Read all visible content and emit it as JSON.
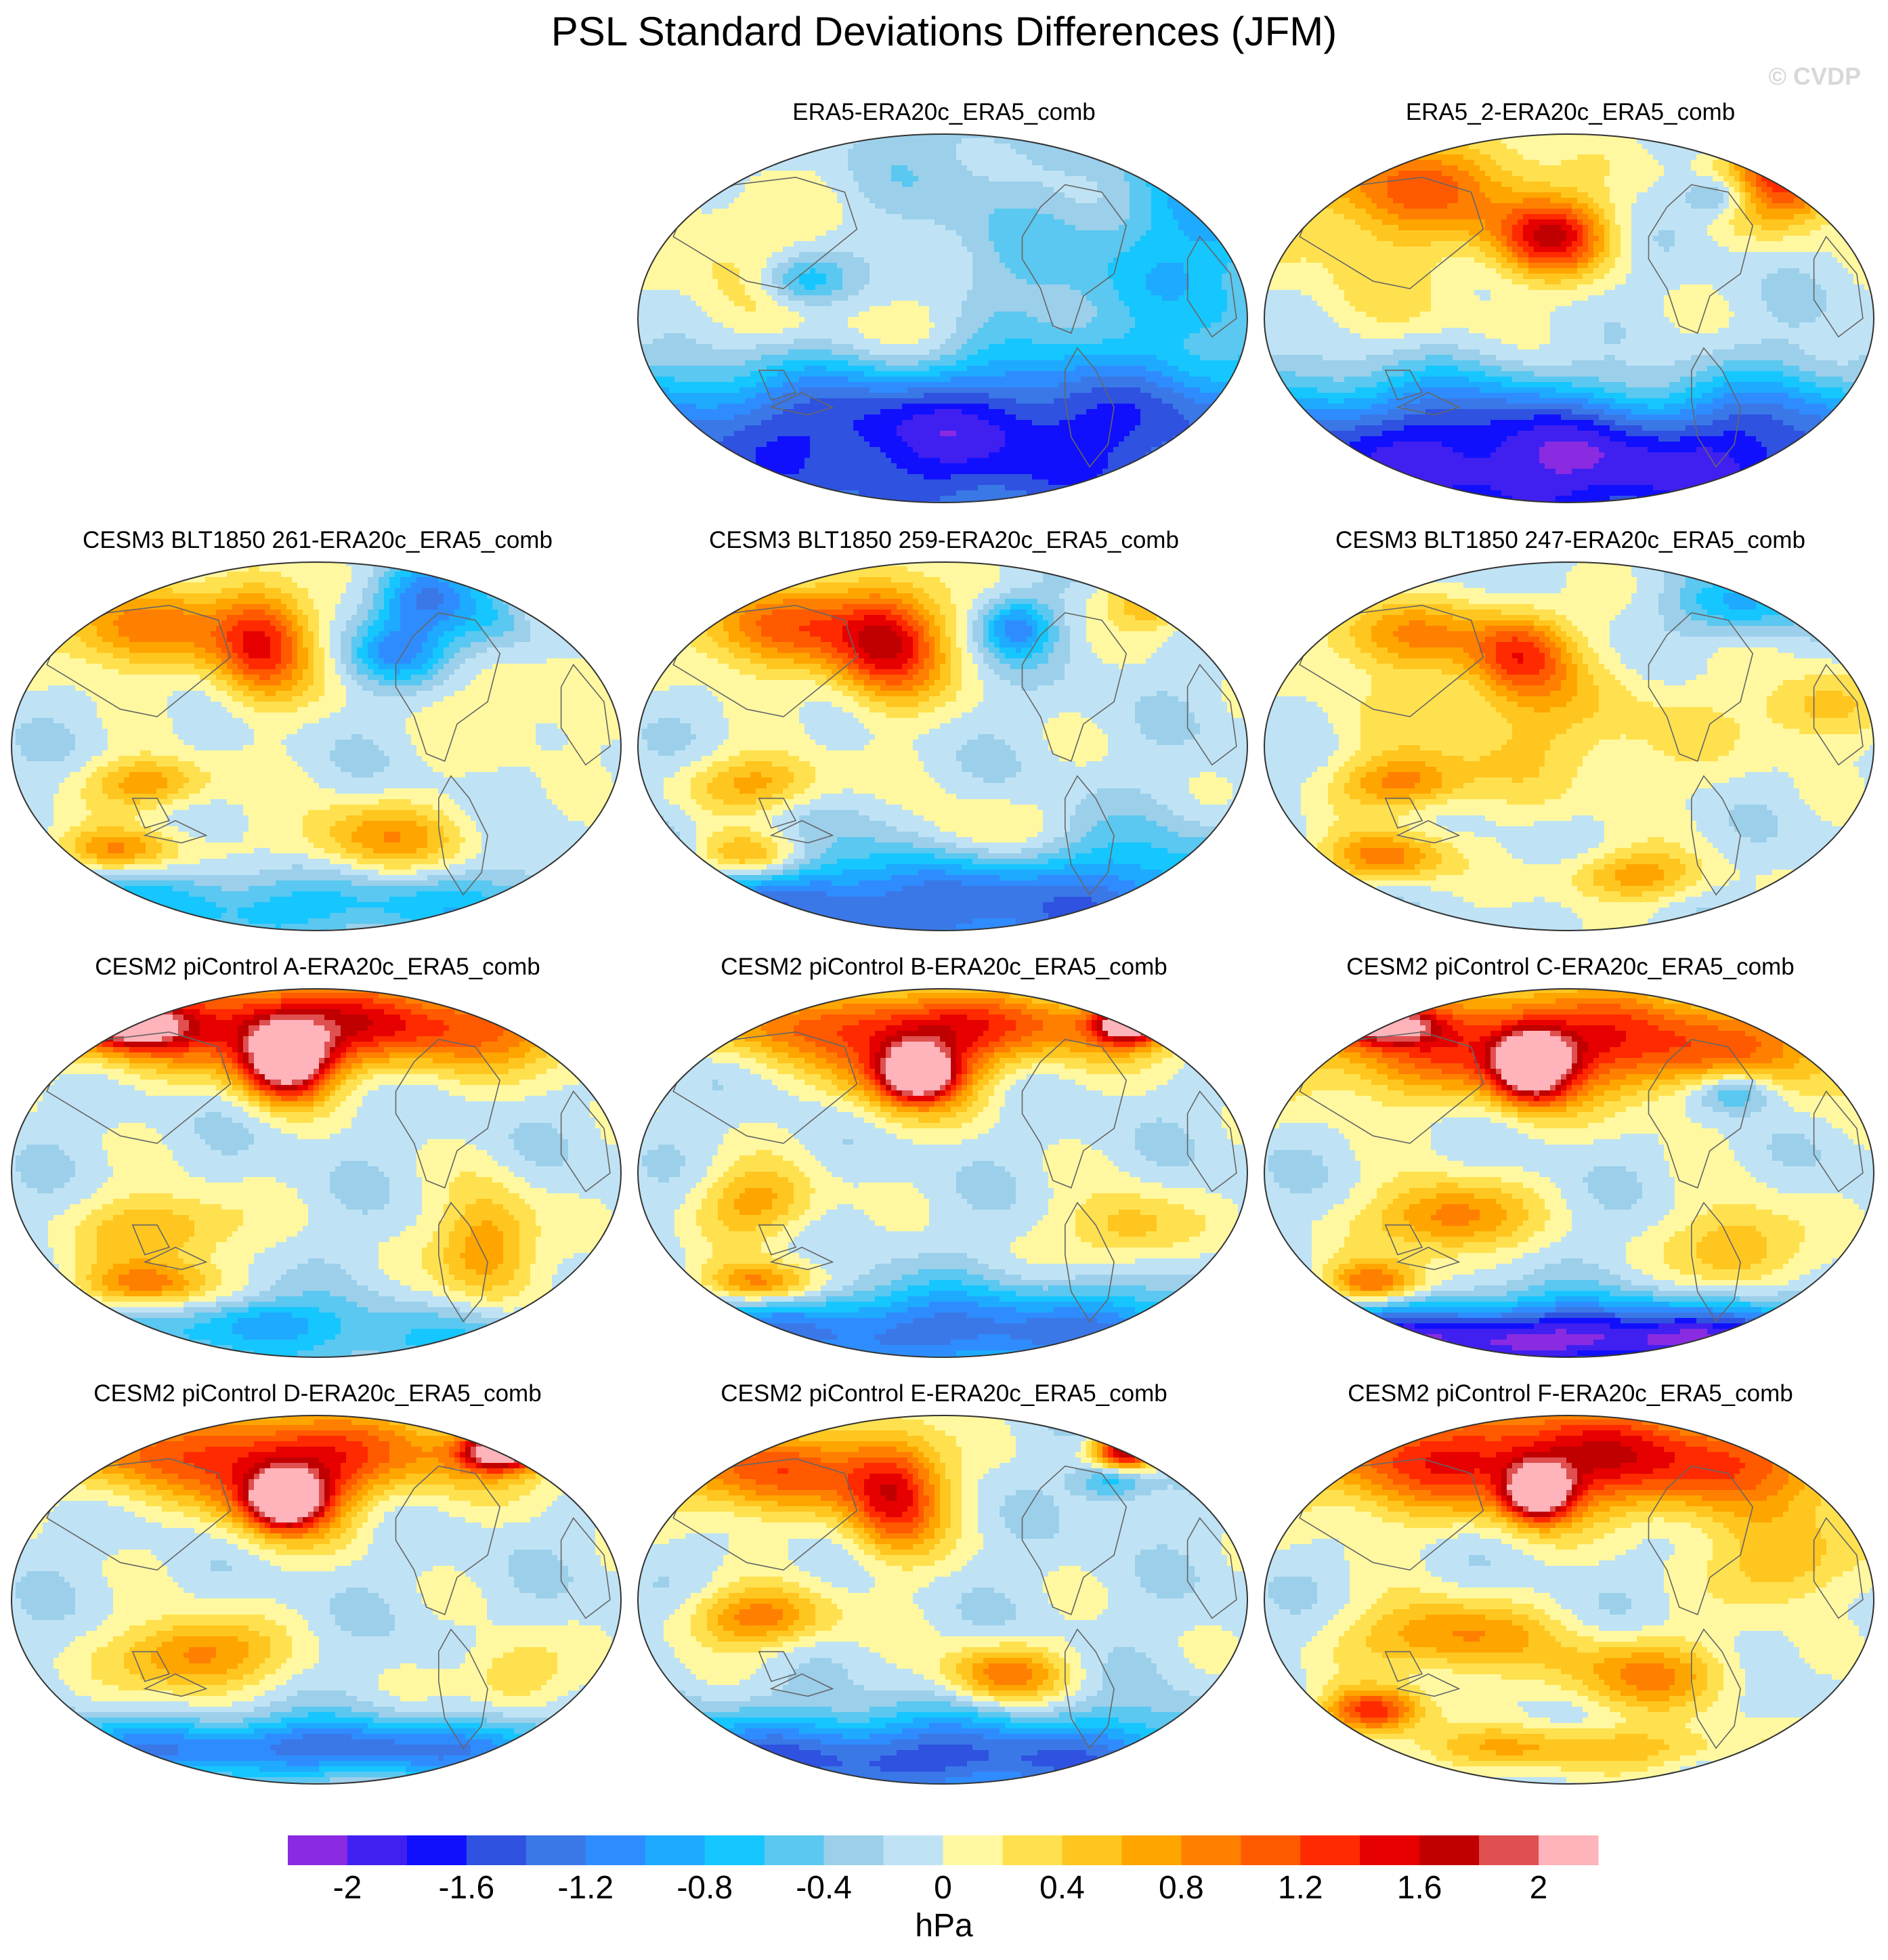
{
  "title": "PSL Standard Deviations Differences (JFM)",
  "watermark": "© CVDP",
  "unit": "hPa",
  "colors": {
    "levels": [
      "#8a2be2",
      "#4020f0",
      "#1010ff",
      "#2f52e0",
      "#3a78e8",
      "#2f8cff",
      "#1eaaff",
      "#16c6ff",
      "#5ac8f0",
      "#9ccfea",
      "#bfe3f5",
      "#fff8a0",
      "#ffe14f",
      "#ffc620",
      "#ffa500",
      "#ff8000",
      "#ff5a00",
      "#ff2a00",
      "#e60000",
      "#c00000",
      "#e05050",
      "#ffb3ba"
    ],
    "ocean_base": "#bfe3f5",
    "coast": "#666666"
  },
  "colorbar_ticks": [
    "-2",
    "-1.6",
    "-1.2",
    "-0.8",
    "-0.4",
    "0",
    "0.4",
    "0.8",
    "1.2",
    "1.6",
    "2"
  ],
  "panels": [
    {
      "title": "ERA5-ERA20c_ERA5_comb",
      "anoms": [
        [
          -0.6,
          0.95,
          0.9,
          0.35,
          0.5
        ],
        [
          -0.5,
          0.8,
          0.9,
          0.3,
          0.4
        ],
        [
          0.1,
          0.87,
          0.8,
          0.25,
          0.35
        ],
        [
          0.3,
          0.48,
          0.45,
          0.12,
          0.12
        ],
        [
          0.2,
          0.13,
          0.75,
          0.1,
          0.1
        ],
        [
          0.7,
          0.73,
          0.9,
          0.15,
          0.2
        ],
        [
          -0.8,
          0.27,
          0.6,
          0.07,
          0.07
        ],
        [
          0.3,
          0.2,
          0.55,
          0.25,
          0.25
        ],
        [
          -1.3,
          0.5,
          0.07,
          0.8,
          0.25
        ],
        [
          -0.8,
          0.5,
          0.25,
          0.6,
          0.15
        ]
      ]
    },
    {
      "title": "ERA5_2-ERA20c_ERA5_comb",
      "anoms": [
        [
          1.0,
          0.25,
          0.86,
          0.22,
          0.14
        ],
        [
          1.5,
          0.47,
          0.72,
          0.09,
          0.1
        ],
        [
          1.0,
          0.85,
          0.86,
          0.12,
          0.12
        ],
        [
          -0.8,
          0.75,
          0.83,
          0.06,
          0.06
        ],
        [
          -1.6,
          0.5,
          0.05,
          0.8,
          0.22
        ],
        [
          -0.8,
          0.5,
          0.22,
          0.6,
          0.15
        ],
        [
          0.3,
          0.2,
          0.6,
          0.25,
          0.25
        ],
        [
          0.5,
          0.6,
          0.3,
          0.15,
          0.15
        ],
        [
          0.6,
          0.86,
          0.9,
          0.1,
          0.1
        ]
      ]
    },
    {
      "title": "CESM3 BLT1850 261-ERA20c_ERA5_comb",
      "anoms": [
        [
          1.5,
          0.41,
          0.78,
          0.08,
          0.16
        ],
        [
          1.0,
          0.2,
          0.82,
          0.15,
          0.12
        ],
        [
          -0.8,
          0.63,
          0.75,
          0.08,
          0.08
        ],
        [
          -0.8,
          0.8,
          0.85,
          0.1,
          0.1
        ],
        [
          0.9,
          0.23,
          0.4,
          0.1,
          0.07
        ],
        [
          0.9,
          0.18,
          0.22,
          0.1,
          0.06
        ],
        [
          0.8,
          0.6,
          0.25,
          0.15,
          0.1
        ],
        [
          -0.6,
          0.5,
          0.07,
          0.8,
          0.1
        ],
        [
          0.3,
          0.85,
          0.6,
          0.15,
          0.15
        ],
        [
          1.0,
          0.9,
          0.9,
          0.1,
          0.1
        ],
        [
          -1.0,
          0.67,
          0.9,
          0.08,
          0.1
        ]
      ]
    },
    {
      "title": "CESM3 BLT1850 259-ERA20c_ERA5_comb",
      "anoms": [
        [
          1.7,
          0.41,
          0.78,
          0.09,
          0.16
        ],
        [
          1.1,
          0.22,
          0.82,
          0.15,
          0.12
        ],
        [
          -1.0,
          0.62,
          0.82,
          0.06,
          0.08
        ],
        [
          1.2,
          0.18,
          0.2,
          0.1,
          0.07
        ],
        [
          -1.3,
          0.5,
          0.07,
          0.8,
          0.17
        ],
        [
          0.8,
          0.2,
          0.4,
          0.12,
          0.08
        ],
        [
          0.6,
          0.55,
          0.25,
          0.12,
          0.1
        ],
        [
          0.8,
          0.85,
          0.9,
          0.08,
          0.08
        ]
      ]
    },
    {
      "title": "CESM3 BLT1850 247-ERA20c_ERA5_comb",
      "anoms": [
        [
          1.2,
          0.42,
          0.75,
          0.08,
          0.12
        ],
        [
          0.8,
          0.22,
          0.8,
          0.15,
          0.1
        ],
        [
          0.5,
          0.45,
          0.55,
          0.3,
          0.2
        ],
        [
          0.9,
          0.23,
          0.4,
          0.1,
          0.07
        ],
        [
          1.0,
          0.2,
          0.2,
          0.1,
          0.07
        ],
        [
          0.8,
          0.6,
          0.15,
          0.12,
          0.07
        ],
        [
          -0.8,
          0.78,
          0.88,
          0.1,
          0.08
        ],
        [
          0.6,
          0.9,
          0.6,
          0.1,
          0.1
        ]
      ]
    },
    {
      "title": "CESM2 piControl A-ERA20c_ERA5_comb",
      "anoms": [
        [
          2.4,
          0.45,
          0.8,
          0.07,
          0.1
        ],
        [
          1.6,
          0.5,
          0.9,
          0.5,
          0.12
        ],
        [
          1.8,
          0.2,
          0.9,
          0.08,
          0.06
        ],
        [
          0.8,
          0.25,
          0.35,
          0.12,
          0.1
        ],
        [
          1.0,
          0.22,
          0.2,
          0.1,
          0.06
        ],
        [
          -0.5,
          0.6,
          0.05,
          0.5,
          0.1
        ],
        [
          1.0,
          0.78,
          0.3,
          0.08,
          0.15
        ],
        [
          -0.6,
          0.4,
          0.1,
          0.1,
          0.06
        ]
      ]
    },
    {
      "title": "CESM2 piControl B-ERA20c_ERA5_comb",
      "anoms": [
        [
          2.2,
          0.46,
          0.77,
          0.05,
          0.06
        ],
        [
          1.4,
          0.45,
          0.78,
          0.12,
          0.12
        ],
        [
          1.2,
          0.5,
          0.9,
          0.5,
          0.1
        ],
        [
          2.0,
          0.8,
          0.9,
          0.05,
          0.05
        ],
        [
          1.2,
          0.2,
          0.2,
          0.1,
          0.06
        ],
        [
          -1.2,
          0.5,
          0.07,
          0.8,
          0.12
        ],
        [
          0.8,
          0.2,
          0.42,
          0.1,
          0.1
        ],
        [
          0.7,
          0.8,
          0.35,
          0.1,
          0.1
        ]
      ]
    },
    {
      "title": "CESM2 piControl C-ERA20c_ERA5_comb",
      "anoms": [
        [
          2.3,
          0.44,
          0.79,
          0.06,
          0.09
        ],
        [
          1.5,
          0.5,
          0.85,
          0.5,
          0.15
        ],
        [
          1.7,
          0.2,
          0.9,
          0.08,
          0.05
        ],
        [
          -1.0,
          0.77,
          0.72,
          0.07,
          0.06
        ],
        [
          1.1,
          0.3,
          0.38,
          0.12,
          0.1
        ],
        [
          1.2,
          0.18,
          0.2,
          0.08,
          0.06
        ],
        [
          -2.0,
          0.5,
          0.05,
          0.8,
          0.1
        ],
        [
          0.8,
          0.78,
          0.3,
          0.1,
          0.12
        ]
      ]
    },
    {
      "title": "CESM2 piControl D-ERA20c_ERA5_comb",
      "anoms": [
        [
          2.3,
          0.45,
          0.77,
          0.05,
          0.06
        ],
        [
          1.4,
          0.45,
          0.78,
          0.11,
          0.12
        ],
        [
          2.2,
          0.8,
          0.9,
          0.06,
          0.05
        ],
        [
          1.2,
          0.4,
          0.9,
          0.5,
          0.12
        ],
        [
          1.1,
          0.3,
          0.35,
          0.12,
          0.1
        ],
        [
          -1.2,
          0.5,
          0.1,
          0.6,
          0.08
        ],
        [
          0.6,
          0.82,
          0.3,
          0.08,
          0.1
        ]
      ]
    },
    {
      "title": "CESM2 piControl E-ERA20c_ERA5_comb",
      "anoms": [
        [
          1.5,
          0.42,
          0.78,
          0.08,
          0.16
        ],
        [
          1.2,
          0.2,
          0.85,
          0.2,
          0.12
        ],
        [
          2.0,
          0.8,
          0.9,
          0.05,
          0.05
        ],
        [
          -0.8,
          0.78,
          0.82,
          0.06,
          0.05
        ],
        [
          1.0,
          0.2,
          0.45,
          0.12,
          0.08
        ],
        [
          1.0,
          0.6,
          0.3,
          0.1,
          0.08
        ],
        [
          -1.4,
          0.45,
          0.07,
          0.7,
          0.12
        ]
      ]
    },
    {
      "title": "CESM2 piControl F-ERA20c_ERA5_comb",
      "anoms": [
        [
          2.3,
          0.45,
          0.79,
          0.05,
          0.07
        ],
        [
          1.7,
          0.5,
          0.88,
          0.5,
          0.15
        ],
        [
          1.4,
          0.18,
          0.2,
          0.08,
          0.06
        ],
        [
          1.0,
          0.3,
          0.4,
          0.15,
          0.1
        ],
        [
          0.9,
          0.62,
          0.3,
          0.15,
          0.1
        ],
        [
          0.8,
          0.85,
          0.6,
          0.1,
          0.12
        ],
        [
          0.7,
          0.5,
          0.1,
          0.3,
          0.06
        ]
      ]
    }
  ]
}
